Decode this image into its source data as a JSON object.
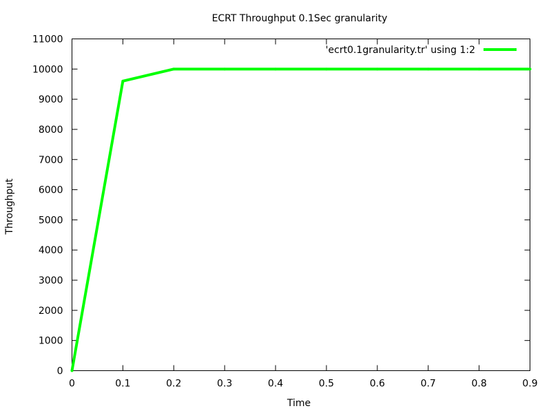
{
  "chart_data": {
    "type": "line",
    "title": "ECRT Throughput 0.1Sec granularity",
    "xlabel": "Time",
    "ylabel": "Throughput",
    "xlim": [
      0,
      0.9
    ],
    "ylim": [
      0,
      11000
    ],
    "x_ticks": [
      "0",
      "0.1",
      "0.2",
      "0.3",
      "0.4",
      "0.5",
      "0.6",
      "0.7",
      "0.8",
      "0.9"
    ],
    "y_ticks": [
      "0",
      "1000",
      "2000",
      "3000",
      "4000",
      "5000",
      "6000",
      "7000",
      "8000",
      "9000",
      "10000",
      "11000"
    ],
    "grid": false,
    "legend_position": "top-right",
    "series": [
      {
        "name": "'ecrt0.1granularity.tr' using 1:2",
        "color": "#00ff00",
        "x": [
          0,
          0.1,
          0.2,
          0.3,
          0.4,
          0.5,
          0.6,
          0.7,
          0.8,
          0.9
        ],
        "y": [
          0,
          9600,
          10000,
          10000,
          10000,
          10000,
          10000,
          10000,
          10000,
          10000
        ]
      }
    ]
  }
}
